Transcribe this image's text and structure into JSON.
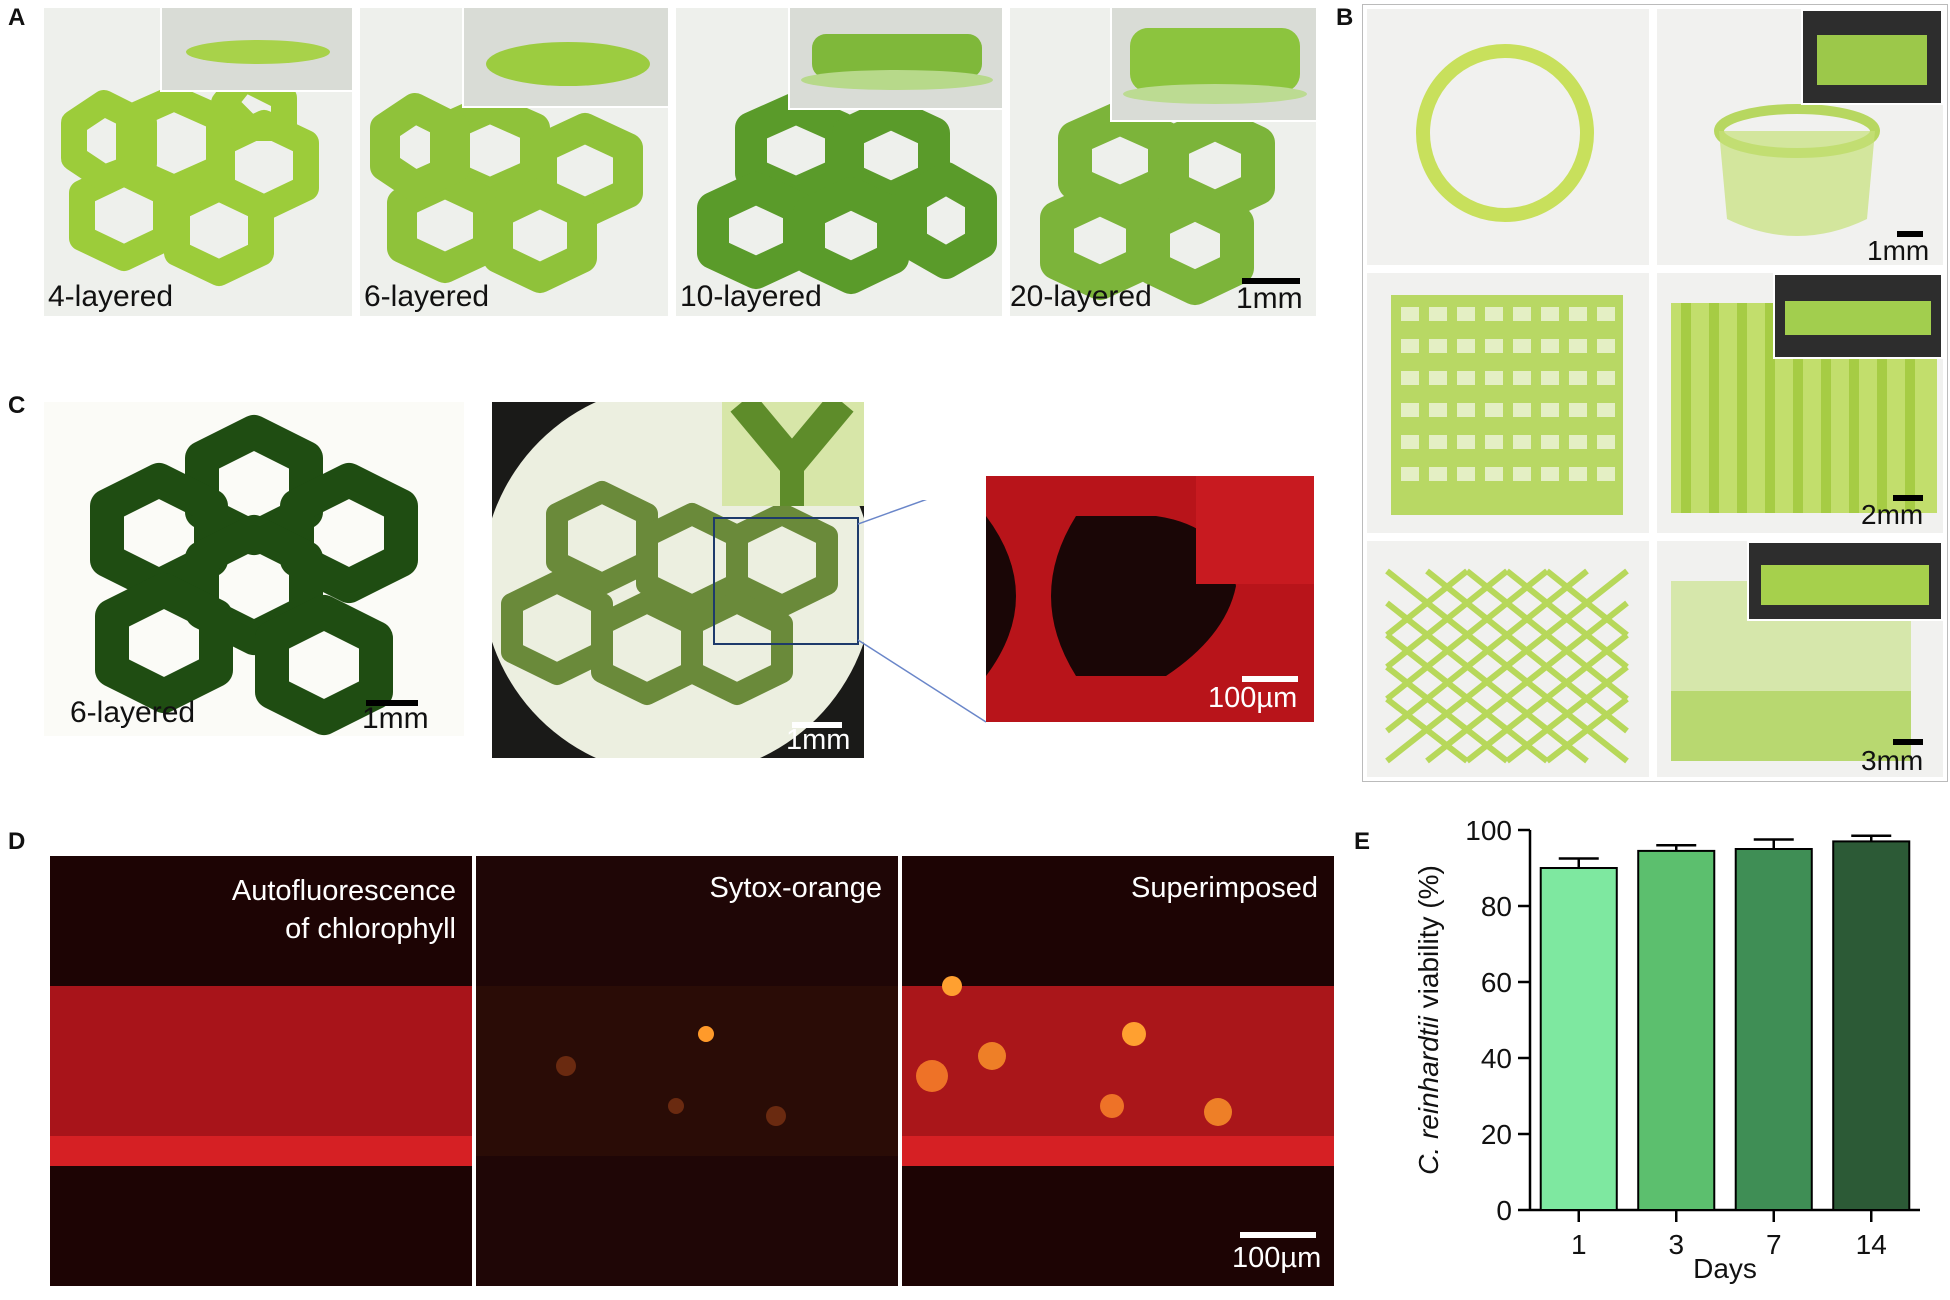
{
  "panel_labels": {
    "a": "A",
    "b": "B",
    "c": "C",
    "d": "D",
    "e": "E"
  },
  "panel_a": {
    "captions": [
      "4-layered",
      "6-layered",
      "10-layered",
      "20-layered"
    ],
    "scale": "1mm"
  },
  "panel_b": {
    "scales": [
      "1mm",
      "2mm",
      "3mm"
    ]
  },
  "panel_c": {
    "caption": "6-layered",
    "scales": [
      "1mm",
      "1mm",
      "100µm"
    ]
  },
  "panel_d": {
    "titles": [
      [
        "Autofluorescence",
        "of  chlorophyll"
      ],
      [
        "Sytox-orange"
      ],
      [
        "Superimposed"
      ]
    ],
    "scale": "100µm"
  },
  "chart_data": {
    "type": "bar",
    "categories": [
      "1",
      "3",
      "7",
      "14"
    ],
    "values": [
      90,
      94.5,
      95,
      97
    ],
    "errors": [
      2.5,
      1.5,
      2.5,
      1.5
    ],
    "bar_colors": [
      "#7EE8A0",
      "#5CBF6E",
      "#3F8E55",
      "#2C5A36"
    ],
    "xlabel": "Days",
    "ylabel_italic": "C. reinhardtii",
    "ylabel_rest": " viability (%)",
    "yticks": [
      0,
      20,
      40,
      60,
      80,
      100
    ],
    "ylim": [
      0,
      100
    ]
  }
}
